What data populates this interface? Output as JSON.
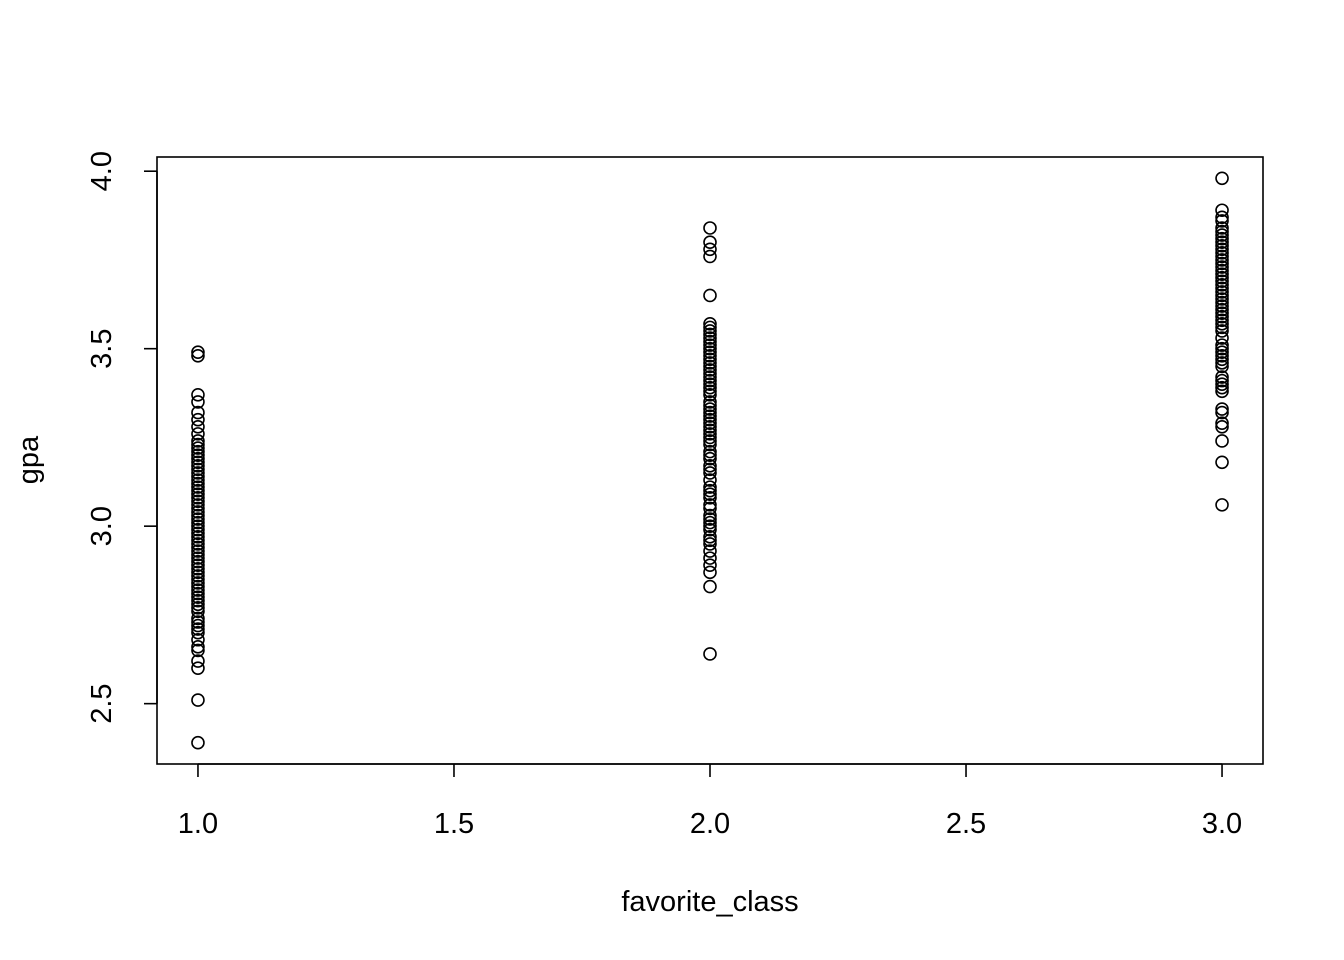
{
  "chart_data": {
    "type": "scatter",
    "title": "",
    "xlabel": "favorite_class",
    "ylabel": "gpa",
    "xlim": [
      0.92,
      3.08
    ],
    "ylim": [
      2.33,
      4.04
    ],
    "xticks": [
      "1.0",
      "1.5",
      "2.0",
      "2.5",
      "3.0"
    ],
    "yticks": [
      "2.5",
      "3.0",
      "3.5",
      "4.0"
    ],
    "grid": false,
    "marker": "open-circle",
    "point_color": "#000000",
    "series": [
      {
        "x": 1.0,
        "y": [
          2.39,
          2.51,
          2.6,
          2.62,
          2.65,
          2.66,
          2.68,
          2.7,
          2.71,
          2.72,
          2.73,
          2.74,
          2.76,
          2.77,
          2.78,
          2.79,
          2.8,
          2.81,
          2.82,
          2.83,
          2.84,
          2.85,
          2.86,
          2.87,
          2.88,
          2.89,
          2.9,
          2.91,
          2.92,
          2.93,
          2.94,
          2.95,
          2.96,
          2.97,
          2.98,
          2.99,
          3.0,
          3.01,
          3.02,
          3.03,
          3.04,
          3.05,
          3.06,
          3.07,
          3.08,
          3.09,
          3.1,
          3.11,
          3.12,
          3.13,
          3.14,
          3.15,
          3.16,
          3.17,
          3.18,
          3.19,
          3.2,
          3.21,
          3.22,
          3.23,
          3.24,
          3.26,
          3.28,
          3.3,
          3.32,
          3.35,
          3.37,
          3.48,
          3.49
        ]
      },
      {
        "x": 2.0,
        "y": [
          2.64,
          2.83,
          2.87,
          2.89,
          2.91,
          2.93,
          2.95,
          2.96,
          2.97,
          2.99,
          3.0,
          3.01,
          3.02,
          3.03,
          3.05,
          3.06,
          3.08,
          3.09,
          3.1,
          3.11,
          3.13,
          3.15,
          3.16,
          3.17,
          3.19,
          3.2,
          3.21,
          3.23,
          3.24,
          3.25,
          3.26,
          3.27,
          3.28,
          3.29,
          3.3,
          3.31,
          3.32,
          3.33,
          3.34,
          3.35,
          3.37,
          3.38,
          3.39,
          3.4,
          3.41,
          3.42,
          3.43,
          3.44,
          3.45,
          3.46,
          3.47,
          3.48,
          3.49,
          3.5,
          3.51,
          3.52,
          3.53,
          3.54,
          3.55,
          3.56,
          3.57,
          3.65,
          3.76,
          3.78,
          3.8,
          3.84
        ]
      },
      {
        "x": 3.0,
        "y": [
          3.06,
          3.18,
          3.24,
          3.28,
          3.29,
          3.32,
          3.33,
          3.38,
          3.39,
          3.4,
          3.41,
          3.42,
          3.45,
          3.46,
          3.47,
          3.48,
          3.49,
          3.5,
          3.51,
          3.53,
          3.55,
          3.56,
          3.57,
          3.58,
          3.59,
          3.6,
          3.61,
          3.62,
          3.63,
          3.64,
          3.65,
          3.66,
          3.67,
          3.68,
          3.69,
          3.7,
          3.71,
          3.72,
          3.73,
          3.74,
          3.75,
          3.76,
          3.77,
          3.78,
          3.79,
          3.8,
          3.81,
          3.82,
          3.83,
          3.84,
          3.86,
          3.87,
          3.89,
          3.98
        ]
      }
    ]
  }
}
